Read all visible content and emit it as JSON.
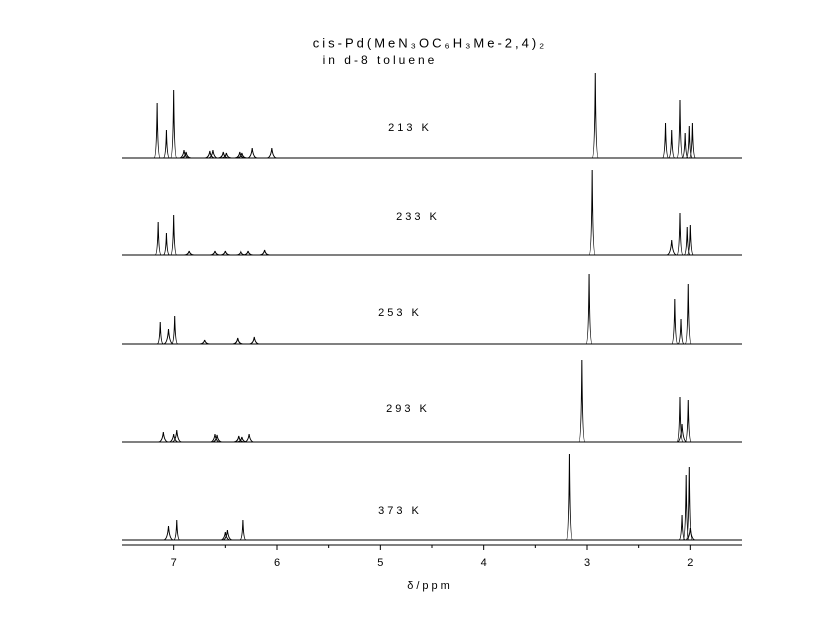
{
  "chart_data": {
    "type": "stacked-spectra",
    "title": "cis-Pd(MeN₃OC₆H₃Me-2,4)₂",
    "subtitle": "in d-8 toluene",
    "x_label": "δ/ppm",
    "xlim": [
      7.5,
      1.5
    ],
    "xticks": [
      7,
      6,
      5,
      4,
      3,
      2
    ],
    "color": "#000000",
    "series": [
      {
        "name": "213 K",
        "x": [
          7.16,
          7.07,
          7.0,
          6.9,
          6.88,
          6.65,
          6.62,
          6.52,
          6.49,
          6.36,
          6.34,
          6.24,
          6.05,
          2.92,
          2.24,
          2.18,
          2.1,
          2.05,
          2.01,
          1.98
        ],
        "values": [
          55,
          28,
          68,
          8,
          6,
          7,
          8,
          6,
          5,
          6,
          5,
          10,
          10,
          85,
          35,
          28,
          58,
          25,
          32,
          35
        ]
      },
      {
        "name": "233 K",
        "x": [
          7.15,
          7.07,
          7.0,
          6.85,
          6.6,
          6.5,
          6.35,
          6.28,
          6.12,
          2.95,
          2.18,
          2.1,
          2.03,
          2.0
        ],
        "values": [
          33,
          22,
          40,
          4,
          4,
          4,
          3,
          4,
          5,
          85,
          15,
          42,
          28,
          30
        ]
      },
      {
        "name": "253 K",
        "x": [
          7.13,
          7.05,
          6.99,
          6.7,
          6.38,
          6.22,
          2.98,
          2.15,
          2.09,
          2.02
        ],
        "values": [
          22,
          15,
          28,
          4,
          6,
          7,
          70,
          45,
          25,
          60
        ]
      },
      {
        "name": "293 K",
        "x": [
          7.1,
          7.0,
          6.97,
          6.6,
          6.58,
          6.37,
          6.34,
          6.27,
          3.05,
          2.1,
          2.08,
          2.02
        ],
        "values": [
          10,
          8,
          12,
          8,
          7,
          6,
          5,
          8,
          82,
          45,
          18,
          42
        ]
      },
      {
        "name": "373 K",
        "x": [
          7.05,
          6.97,
          6.5,
          6.48,
          6.33,
          3.17,
          2.08,
          2.04,
          2.01,
          2.0
        ],
        "values": [
          14,
          20,
          8,
          10,
          20,
          86,
          25,
          65,
          73,
          12
        ]
      }
    ]
  }
}
